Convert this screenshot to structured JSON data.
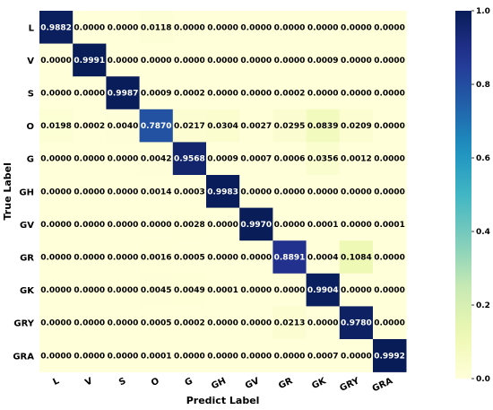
{
  "chart_data": {
    "type": "heatmap",
    "title": "",
    "xlabel": "Predict Label",
    "ylabel": "True Label",
    "x_categories": [
      "L",
      "V",
      "S",
      "O",
      "G",
      "GH",
      "GV",
      "GR",
      "GK",
      "GRY",
      "GRA"
    ],
    "y_categories": [
      "L",
      "V",
      "S",
      "O",
      "G",
      "GH",
      "GV",
      "GR",
      "GK",
      "GRY",
      "GRA"
    ],
    "values": [
      [
        "0.9882",
        "0.0000",
        "0.0000",
        "0.0118",
        "0.0000",
        "0.0000",
        "0.0000",
        "0.0000",
        "0.0000",
        "0.0000",
        "0.0000"
      ],
      [
        "0.0000",
        "0.9991",
        "0.0000",
        "0.0000",
        "0.0000",
        "0.0000",
        "0.0000",
        "0.0000",
        "0.0009",
        "0.0000",
        "0.0000"
      ],
      [
        "0.0000",
        "0.0000",
        "0.9987",
        "0.0009",
        "0.0002",
        "0.0000",
        "0.0000",
        "0.0002",
        "0.0000",
        "0.0000",
        "0.0000"
      ],
      [
        "0.0198",
        "0.0002",
        "0.0040",
        "0.7870",
        "0.0217",
        "0.0304",
        "0.0027",
        "0.0295",
        "0.0839",
        "0.0209",
        "0.0000"
      ],
      [
        "0.0000",
        "0.0000",
        "0.0000",
        "0.0042",
        "0.9568",
        "0.0009",
        "0.0007",
        "0.0006",
        "0.0356",
        "0.0012",
        "0.0000"
      ],
      [
        "0.0000",
        "0.0000",
        "0.0000",
        "0.0014",
        "0.0003",
        "0.9983",
        "0.0000",
        "0.0000",
        "0.0000",
        "0.0000",
        "0.0000"
      ],
      [
        "0.0000",
        "0.0000",
        "0.0000",
        "0.0000",
        "0.0028",
        "0.0000",
        "0.9970",
        "0.0000",
        "0.0001",
        "0.0000",
        "0.0001"
      ],
      [
        "0.0000",
        "0.0000",
        "0.0000",
        "0.0016",
        "0.0005",
        "0.0000",
        "0.0000",
        "0.8891",
        "0.0004",
        "0.1084",
        "0.0000"
      ],
      [
        "0.0000",
        "0.0000",
        "0.0000",
        "0.0045",
        "0.0049",
        "0.0001",
        "0.0000",
        "0.0000",
        "0.9904",
        "0.0000",
        "0.0000"
      ],
      [
        "0.0000",
        "0.0000",
        "0.0000",
        "0.0005",
        "0.0002",
        "0.0000",
        "0.0000",
        "0.0213",
        "0.0000",
        "0.9780",
        "0.0000"
      ],
      [
        "0.0000",
        "0.0000",
        "0.0000",
        "0.0001",
        "0.0000",
        "0.0000",
        "0.0000",
        "0.0000",
        "0.0007",
        "0.0000",
        "0.9992"
      ]
    ],
    "colorbar": {
      "range": [
        0.0,
        1.0
      ],
      "ticks": [
        "0.0",
        "0.2",
        "0.4",
        "0.6",
        "0.8",
        "1.0"
      ],
      "colormap": "YlGnBu"
    },
    "grid": false
  }
}
